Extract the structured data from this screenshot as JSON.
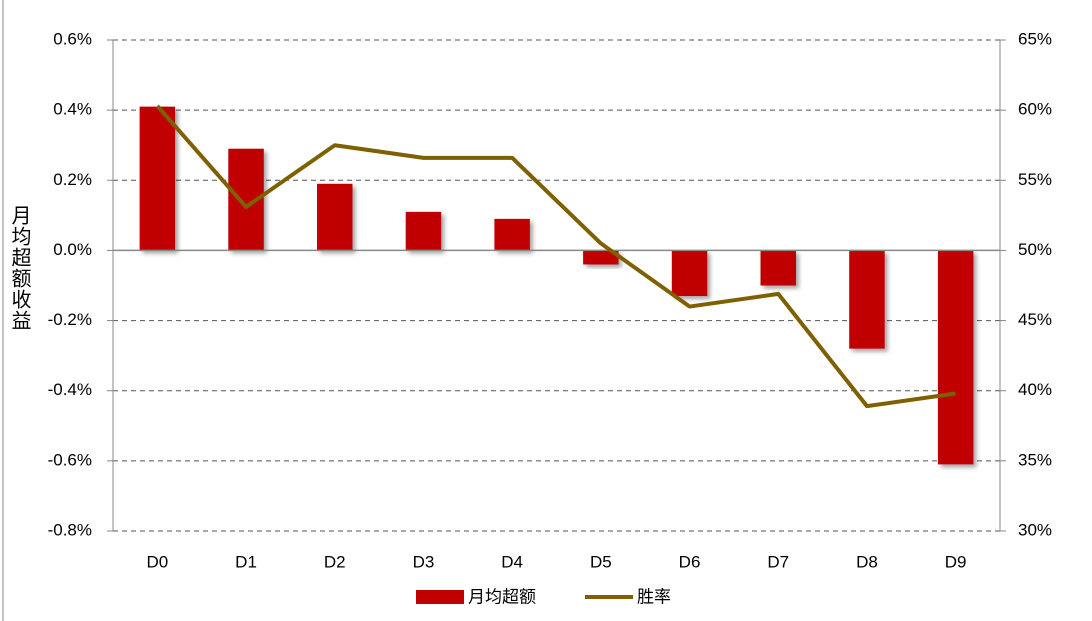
{
  "chart_data": {
    "type": "bar-line",
    "y_label": "月均超额收益",
    "categories": [
      "D0",
      "D1",
      "D2",
      "D3",
      "D4",
      "D5",
      "D6",
      "D7",
      "D8",
      "D9"
    ],
    "series": [
      {
        "name": "月均超额",
        "type": "bar",
        "color": "#c00000",
        "values": [
          0.41,
          0.29,
          0.19,
          0.11,
          0.09,
          -0.04,
          -0.13,
          -0.1,
          -0.28,
          -0.61
        ]
      },
      {
        "name": "胜率",
        "type": "line",
        "axis": "y2",
        "color": "#7f6000",
        "values": [
          60.3,
          53.1,
          57.5,
          56.6,
          56.6,
          50.5,
          46.0,
          46.9,
          38.9,
          39.8
        ]
      }
    ],
    "ylim": [
      -0.8,
      0.6
    ],
    "yticks": [
      {
        "value": -0.8,
        "label": "-0.8%"
      },
      {
        "value": -0.6,
        "label": "-0.6%"
      },
      {
        "value": -0.4,
        "label": "-0.4%"
      },
      {
        "value": -0.2,
        "label": "-0.2%"
      },
      {
        "value": 0,
        "label": "0.0%"
      },
      {
        "value": 0.2,
        "label": "0.2%"
      },
      {
        "value": 0.4,
        "label": "0.4%"
      },
      {
        "value": 0.6,
        "label": "0.6%"
      }
    ],
    "y2lim": [
      30,
      65
    ],
    "y2ticks": [
      {
        "value": 30,
        "label": "30%"
      },
      {
        "value": 35,
        "label": "35%"
      },
      {
        "value": 40,
        "label": "40%"
      },
      {
        "value": 45,
        "label": "45%"
      },
      {
        "value": 50,
        "label": "50%"
      },
      {
        "value": 55,
        "label": "55%"
      },
      {
        "value": 60,
        "label": "60%"
      },
      {
        "value": 65,
        "label": "65%"
      }
    ],
    "grid": true,
    "legend": "bottom"
  }
}
